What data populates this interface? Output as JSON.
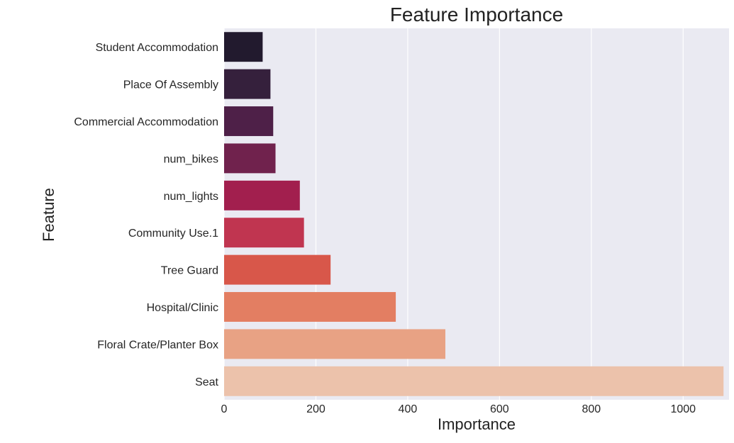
{
  "chart_data": {
    "type": "bar",
    "orientation": "horizontal",
    "title": "Feature Importance",
    "xlabel": "Importance",
    "ylabel": "Feature",
    "categories": [
      "Student Accommodation",
      "Place Of Assembly",
      "Commercial Accommodation",
      "num_bikes",
      "num_lights",
      "Community Use.1",
      "Tree Guard",
      "Hospital/Clinic",
      "Floral Crate/Planter Box",
      "Seat"
    ],
    "values": [
      84,
      101,
      107,
      112,
      165,
      174,
      232,
      374,
      482,
      1088
    ],
    "xlim": [
      0,
      1100
    ],
    "xticks": [
      0,
      200,
      400,
      600,
      800,
      1000
    ],
    "grid": true,
    "background": "#eaeaf2",
    "colors": [
      "#221a2e",
      "#35203c",
      "#4e2048",
      "#70224d",
      "#a21f4e",
      "#c03550",
      "#d8574a",
      "#e37e62",
      "#e8a284",
      "#ecc2ab"
    ]
  }
}
